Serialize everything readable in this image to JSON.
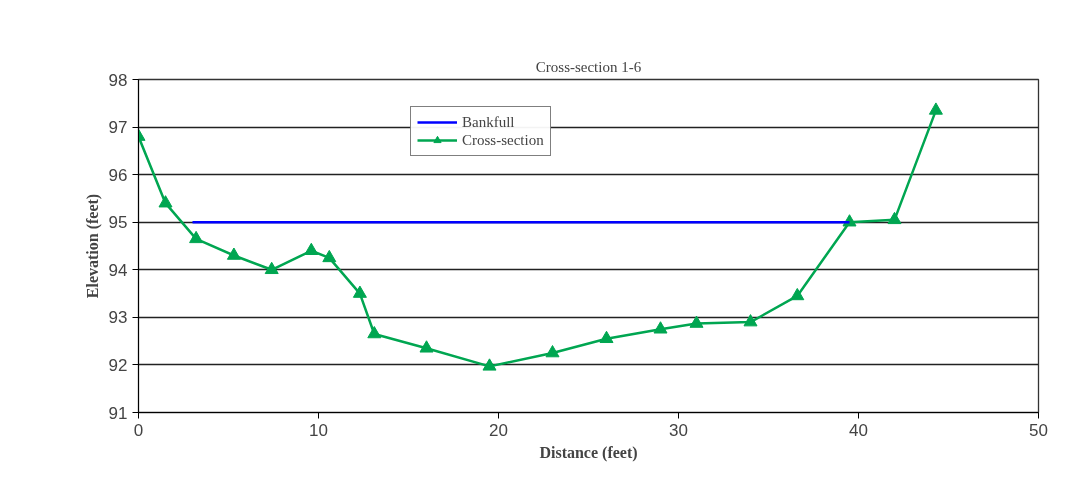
{
  "chart_data": {
    "type": "line",
    "title": "Cross-section 1-6",
    "xlabel": "Distance (feet)",
    "ylabel": "Elevation (feet)",
    "xlim": [
      0,
      50
    ],
    "xticks": [
      0,
      10,
      20,
      30,
      40,
      50
    ],
    "ylim": [
      91,
      98
    ],
    "yticks": [
      91,
      92,
      93,
      94,
      95,
      96,
      97,
      98
    ],
    "grid": "y",
    "legend": "top",
    "series": [
      {
        "name": "Bankfull",
        "color": "#0000ff",
        "marker": "none",
        "x": [
          3.0,
          39.5
        ],
        "values": [
          95,
          95
        ]
      },
      {
        "name": "Cross-section",
        "color": "#00a651",
        "marker": "triangle",
        "x": [
          0,
          1.5,
          3.2,
          5.3,
          7.4,
          9.6,
          10.6,
          12.3,
          13.1,
          16.0,
          19.5,
          23.0,
          26.0,
          29.0,
          31.0,
          34.0,
          36.6,
          39.5,
          42.0,
          44.3
        ],
        "values": [
          96.8,
          95.4,
          94.65,
          94.3,
          94.0,
          94.4,
          94.25,
          93.5,
          92.65,
          92.35,
          91.97,
          92.25,
          92.55,
          92.75,
          92.87,
          92.9,
          93.45,
          95.0,
          95.05,
          97.35
        ]
      }
    ]
  }
}
